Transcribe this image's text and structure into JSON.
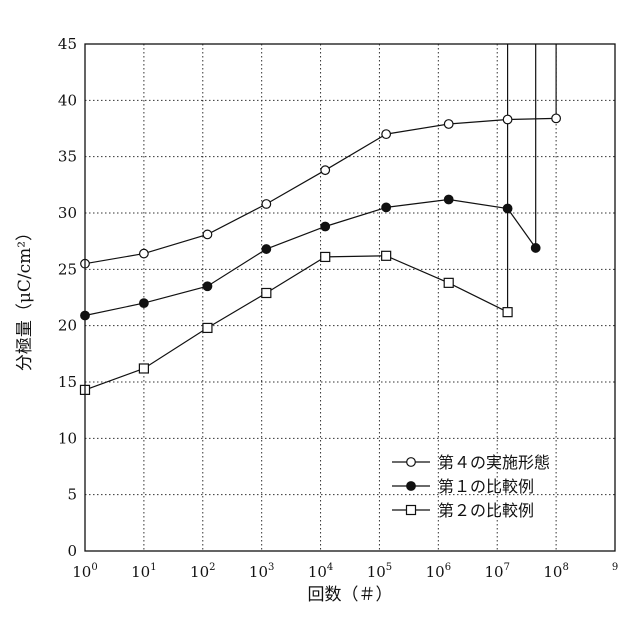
{
  "chart_data": {
    "type": "line",
    "title": "",
    "xlabel": "回数（＃）",
    "ylabel": "分極量（μC/cm²）",
    "x_scale": "log10",
    "xlim": [
      1,
      1000000000
    ],
    "ylim": [
      0,
      45
    ],
    "x_ticks": [
      {
        "base": "10",
        "exp": "0"
      },
      {
        "base": "10",
        "exp": "1"
      },
      {
        "base": "10",
        "exp": "2"
      },
      {
        "base": "10",
        "exp": "3"
      },
      {
        "base": "10",
        "exp": "4"
      },
      {
        "base": "10",
        "exp": "5"
      },
      {
        "base": "10",
        "exp": "6"
      },
      {
        "base": "10",
        "exp": "7"
      },
      {
        "base": "10",
        "exp": "8"
      },
      {
        "base": "",
        "exp": "9"
      }
    ],
    "y_ticks": [
      "0",
      "5",
      "10",
      "15",
      "20",
      "25",
      "30",
      "35",
      "40",
      "45"
    ],
    "grid": "dotted",
    "legend_position": "bottom-right",
    "series": [
      {
        "name": "第４の実施形態",
        "marker": "open-circle",
        "x": [
          1,
          10,
          120,
          1200,
          12000,
          130000,
          1500000,
          15000000,
          100000000
        ],
        "y": [
          25.5,
          26.4,
          28.1,
          30.8,
          33.8,
          37.0,
          37.9,
          38.3,
          38.4
        ],
        "failure_x": 15000000
      },
      {
        "name": "第１の比較例",
        "marker": "filled-circle",
        "x": [
          1,
          10,
          120,
          1200,
          12000,
          130000,
          1500000,
          15000000,
          45000000
        ],
        "y": [
          20.9,
          22.0,
          23.5,
          26.8,
          28.8,
          30.5,
          31.2,
          30.4,
          26.9
        ],
        "failure_x": 45000000
      },
      {
        "name": "第２の比較例",
        "marker": "open-square",
        "x": [
          1,
          10,
          120,
          1200,
          12000,
          130000,
          1500000,
          15000000
        ],
        "y": [
          14.3,
          16.2,
          19.8,
          22.9,
          26.1,
          26.2,
          23.8,
          21.2
        ],
        "failure_x": 15000000
      }
    ],
    "vertical_lines_x": [
      15000000,
      45000000,
      100000000
    ]
  }
}
